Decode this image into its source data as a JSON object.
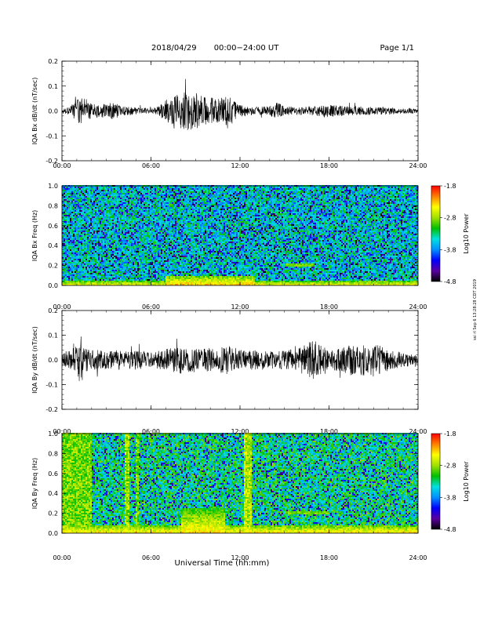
{
  "header": {
    "date": "2018/04/29",
    "range": "00:00−24:00 UT",
    "page": "Page 1/1"
  },
  "side_note": "ssi rl Sep 6 13:28:28 CDT 2019",
  "footer": {
    "xlabel": "Universal Time (hh:mm)"
  },
  "colorbar": {
    "label": "Log10 Power",
    "ticks": [
      "-1.8",
      "-2.8",
      "-3.8",
      "-4.8"
    ],
    "gradient": [
      "#000000",
      "#5a00a0",
      "#0000ff",
      "#0090ff",
      "#00e0e0",
      "#00c000",
      "#a0e000",
      "#ffff00",
      "#ff8000",
      "#ff0000"
    ]
  },
  "chart_data": [
    {
      "type": "line",
      "title": "",
      "xlabel": "",
      "ylabel": "IQA Bx dB/dt (nT/sec)",
      "xlim": [
        0,
        24
      ],
      "ylim": [
        -0.2,
        0.2
      ],
      "xticks": [
        "00:00",
        "06:00",
        "12:00",
        "18:00",
        "24:00"
      ],
      "yticks": [
        "-0.2",
        "-0.1",
        "0.0",
        "0.1",
        "0.2"
      ],
      "series": [
        {
          "x": [
            0,
            0.5,
            1,
            1.3,
            1.5,
            2,
            2.5,
            3,
            3.5,
            4,
            5,
            6,
            6.5,
            7,
            7.5,
            8,
            8.5,
            9,
            9.5,
            10,
            10.5,
            11,
            11.5,
            12,
            13,
            14,
            14.5,
            15,
            16,
            17,
            18,
            19,
            20,
            21,
            22,
            23,
            24
          ],
          "amplitude": [
            0.01,
            0.015,
            0.045,
            0.055,
            0.03,
            0.035,
            0.025,
            0.03,
            0.035,
            0.02,
            0.015,
            0.01,
            0.02,
            0.045,
            0.06,
            0.07,
            0.08,
            0.075,
            0.06,
            0.055,
            0.05,
            0.06,
            0.05,
            0.025,
            0.015,
            0.02,
            0.035,
            0.02,
            0.015,
            0.02,
            0.025,
            0.02,
            0.02,
            0.015,
            0.015,
            0.01,
            0.01
          ]
        }
      ]
    },
    {
      "type": "heatmap",
      "title": "",
      "xlabel": "",
      "ylabel": "IQA Bx Freq (Hz)",
      "xlim": [
        0,
        24
      ],
      "ylim": [
        0,
        1.0
      ],
      "zlim": [
        -4.8,
        -1.8
      ],
      "xticks": [
        "00:00",
        "06:00",
        "12:00",
        "18:00",
        "24:00"
      ],
      "yticks": [
        "0.0",
        "0.2",
        "0.4",
        "0.6",
        "0.8",
        "1.0"
      ],
      "background_power": -3.5,
      "features": [
        {
          "kind": "low_freq_band",
          "t": [
            0,
            24
          ],
          "f": [
            0,
            0.05
          ],
          "power": -2.5
        },
        {
          "kind": "enhancement",
          "t": [
            7,
            13
          ],
          "f": [
            0,
            0.1
          ],
          "power": -2.3
        },
        {
          "kind": "tone",
          "t": [
            15,
            17
          ],
          "f": 0.2,
          "power": -2.9
        },
        {
          "kind": "tone",
          "t": [
            7.2,
            7.5
          ],
          "f": 0.8,
          "power": -3.0
        }
      ]
    },
    {
      "type": "line",
      "title": "",
      "xlabel": "",
      "ylabel": "IQA By dB/dt (nT/sec)",
      "xlim": [
        0,
        24
      ],
      "ylim": [
        -0.2,
        0.2
      ],
      "xticks": [
        "00:00",
        "06:00",
        "12:00",
        "18:00",
        "24:00"
      ],
      "yticks": [
        "-0.2",
        "-0.1",
        "0.0",
        "0.1",
        "0.2"
      ],
      "series": [
        {
          "x": [
            0,
            0.5,
            1,
            1.3,
            1.5,
            2,
            2.5,
            3,
            3.5,
            4,
            5,
            6,
            6.5,
            7,
            7.5,
            8,
            8.5,
            9,
            9.5,
            10,
            10.5,
            11,
            11.5,
            12,
            13,
            14,
            15,
            16,
            16.5,
            17,
            18,
            19,
            19.5,
            20,
            21,
            22,
            23,
            24
          ],
          "amplitude": [
            0.03,
            0.04,
            0.07,
            0.1,
            0.05,
            0.04,
            0.04,
            0.035,
            0.04,
            0.04,
            0.04,
            0.03,
            0.04,
            0.045,
            0.05,
            0.06,
            0.05,
            0.05,
            0.045,
            0.05,
            0.05,
            0.06,
            0.055,
            0.04,
            0.04,
            0.04,
            0.04,
            0.05,
            0.07,
            0.08,
            0.04,
            0.05,
            0.07,
            0.06,
            0.07,
            0.04,
            0.03,
            0.02
          ]
        }
      ]
    },
    {
      "type": "heatmap",
      "title": "",
      "xlabel": "",
      "ylabel": "IQA By Freq (Hz)",
      "xlim": [
        0,
        24
      ],
      "ylim": [
        0,
        1.0
      ],
      "zlim": [
        -4.8,
        -1.8
      ],
      "xticks": [
        "00:00",
        "06:00",
        "12:00",
        "18:00",
        "24:00"
      ],
      "yticks": [
        "0.0",
        "0.2",
        "0.4",
        "0.6",
        "0.8",
        "1.0"
      ],
      "background_power": -3.3,
      "features": [
        {
          "kind": "low_freq_band",
          "t": [
            0,
            24
          ],
          "f": [
            0,
            0.08
          ],
          "power": -2.4
        },
        {
          "kind": "broadband",
          "t": [
            0,
            2
          ],
          "f": [
            0,
            1.0
          ],
          "power": -2.9
        },
        {
          "kind": "broadband",
          "t": [
            4.2,
            4.5
          ],
          "f": [
            0,
            1.0
          ],
          "power": -2.8
        },
        {
          "kind": "broadband",
          "t": [
            5.0,
            5.2
          ],
          "f": [
            0,
            1.0
          ],
          "power": -2.9
        },
        {
          "kind": "broadband",
          "t": [
            12.3,
            12.8
          ],
          "f": [
            0,
            1.0
          ],
          "power": -2.7
        },
        {
          "kind": "enhancement",
          "t": [
            8,
            11
          ],
          "f": [
            0,
            0.25
          ],
          "power": -2.4
        },
        {
          "kind": "tone",
          "t": [
            15,
            18
          ],
          "f": 0.2,
          "power": -2.9
        }
      ]
    }
  ]
}
